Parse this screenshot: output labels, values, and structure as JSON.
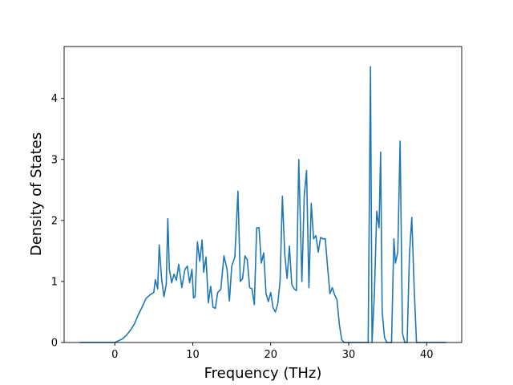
{
  "chart_data": {
    "type": "line",
    "title": "",
    "xlabel": "Frequency (THz)",
    "ylabel": "Density of States",
    "xlim": [
      -6.5,
      44.5
    ],
    "ylim": [
      0,
      4.85
    ],
    "x_ticks": [
      0,
      10,
      20,
      30,
      40
    ],
    "y_ticks": [
      0,
      1,
      2,
      3,
      4
    ],
    "grid": false,
    "legend": "none",
    "series": [
      {
        "color": "#1f77b4",
        "x": [
          -4.5,
          0,
          0.5,
          1,
          1.5,
          2,
          2.5,
          3,
          3.5,
          4,
          4.5,
          5,
          5.2,
          5.5,
          5.7,
          6,
          6.3,
          6.6,
          6.8,
          7,
          7.3,
          7.6,
          7.9,
          8.2,
          8.6,
          9,
          9.3,
          9.6,
          9.9,
          10.1,
          10.3,
          10.6,
          10.9,
          11.2,
          11.4,
          11.7,
          12,
          12.3,
          12.6,
          12.9,
          13.2,
          13.6,
          14,
          14.4,
          14.7,
          15,
          15.4,
          15.8,
          16.1,
          16.4,
          16.7,
          17,
          17.3,
          17.6,
          17.9,
          18.2,
          18.5,
          18.8,
          19.1,
          19.4,
          19.7,
          20,
          20.3,
          20.6,
          20.9,
          21.2,
          21.5,
          21.8,
          22.1,
          22.4,
          22.7,
          23,
          23.3,
          23.6,
          24,
          24.3,
          24.6,
          24.9,
          25.2,
          25.5,
          25.8,
          26.1,
          26.4,
          26.7,
          27,
          27.3,
          27.6,
          27.9,
          28.2,
          28.5,
          28.8,
          29.1,
          29.4,
          29.7,
          30,
          30.3,
          30.6,
          32.5,
          32.8,
          33,
          33.3,
          33.6,
          33.9,
          34.1,
          34.3,
          34.6,
          34.9,
          35.2,
          35.5,
          35.8,
          36,
          36.3,
          36.6,
          36.9,
          37.2,
          37.5,
          37.8,
          38.1,
          38.4,
          38.7,
          39,
          42.5
        ],
        "values": [
          0,
          0,
          0.03,
          0.06,
          0.12,
          0.2,
          0.3,
          0.45,
          0.58,
          0.72,
          0.78,
          0.82,
          1.03,
          0.88,
          1.6,
          1.05,
          0.75,
          0.95,
          2.03,
          1.2,
          0.98,
          1.12,
          1.02,
          1.28,
          0.9,
          1.2,
          1.25,
          0.98,
          1.2,
          0.73,
          0.75,
          1.65,
          1.33,
          1.68,
          1.15,
          1.4,
          0.65,
          0.92,
          0.58,
          0.56,
          0.82,
          0.87,
          1.42,
          1.2,
          0.68,
          1.25,
          1.4,
          2.48,
          1.0,
          1.05,
          1.42,
          1.35,
          0.9,
          0.88,
          0.62,
          1.88,
          1.88,
          1.3,
          1.47,
          0.8,
          0.67,
          0.82,
          0.57,
          0.5,
          0.63,
          1.0,
          2.4,
          1.45,
          1.05,
          1.58,
          0.95,
          0.88,
          0.85,
          3.0,
          1.0,
          2.4,
          2.82,
          0.9,
          2.28,
          1.7,
          1.75,
          1.48,
          1.72,
          1.7,
          1.7,
          1.23,
          0.8,
          0.9,
          0.78,
          0.7,
          0.3,
          0.05,
          0,
          0,
          0,
          0,
          0,
          0,
          4.52,
          0.0,
          0.8,
          2.15,
          1.88,
          3.12,
          0.5,
          0.08,
          0,
          0,
          0,
          1.7,
          1.3,
          1.48,
          3.3,
          0.15,
          0.0,
          0.0,
          1.45,
          2.05,
          0.9,
          0,
          0,
          0
        ]
      }
    ]
  }
}
